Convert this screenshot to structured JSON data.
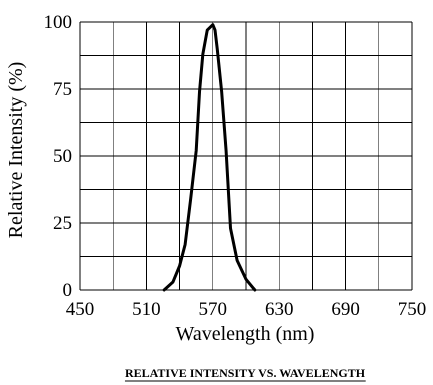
{
  "chart_data": {
    "type": "line",
    "title": "",
    "xlabel": "Wavelength (nm)",
    "ylabel": "Relative Intensity (%)",
    "caption": "RELATIVE INTENSITY VS. WAVELENGTH",
    "xlim": [
      450,
      750
    ],
    "ylim": [
      0,
      100
    ],
    "x_ticks": [
      450,
      510,
      570,
      630,
      690,
      750
    ],
    "y_ticks": [
      0,
      25,
      50,
      75,
      100
    ],
    "grid": true,
    "series": [
      {
        "x": [
          526,
          534,
          540,
          545,
          550,
          555,
          558,
          561,
          565,
          570,
          572,
          574,
          578,
          582,
          586,
          592,
          600,
          608
        ],
        "y": [
          0,
          3,
          9,
          17,
          34,
          52,
          74,
          88,
          97,
          99,
          97,
          90,
          74,
          52,
          23,
          11,
          4,
          0
        ]
      }
    ],
    "line_color": "#000000"
  }
}
